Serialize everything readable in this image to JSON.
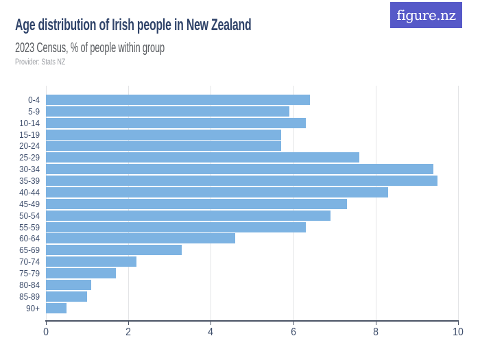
{
  "header": {
    "title": "Age distribution of Irish people in New Zealand",
    "subtitle": "2023 Census, % of people within group",
    "provider": "Provider: Stats NZ",
    "logo_text": "figure.nz",
    "logo_bg_color": "#5659c8",
    "title_color": "#2f4369"
  },
  "chart_data": {
    "type": "bar",
    "orientation": "horizontal",
    "title": "Age distribution of Irish people in New Zealand",
    "subtitle": "2023 Census, % of people within group",
    "xlabel": "",
    "ylabel": "",
    "categories": [
      "0-4",
      "5-9",
      "10-14",
      "15-19",
      "20-24",
      "25-29",
      "30-34",
      "35-39",
      "40-44",
      "45-49",
      "50-54",
      "55-59",
      "60-64",
      "65-69",
      "70-74",
      "75-79",
      "80-84",
      "85-89",
      "90+"
    ],
    "values": [
      6.4,
      5.9,
      6.3,
      5.7,
      5.7,
      7.6,
      9.4,
      9.5,
      8.3,
      7.3,
      6.9,
      6.3,
      4.6,
      3.3,
      2.2,
      1.7,
      1.1,
      1.0,
      0.5
    ],
    "xlim": [
      0,
      10
    ],
    "xticks": [
      0,
      2,
      4,
      6,
      8,
      10
    ],
    "bar_color": "#7db3e2",
    "grid": true,
    "legend": false
  }
}
